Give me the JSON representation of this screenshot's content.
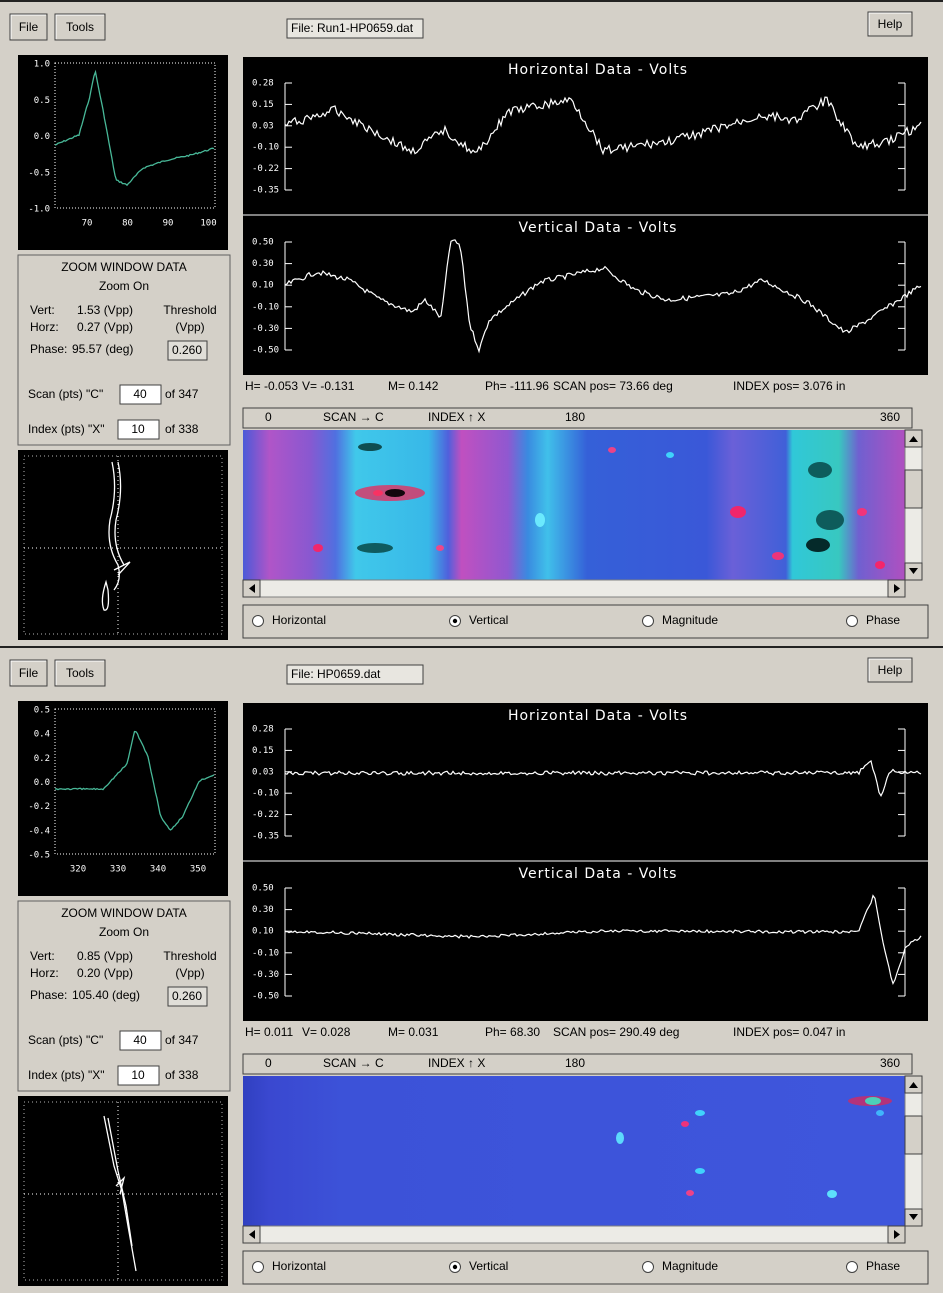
{
  "panels": [
    {
      "menu": {
        "file": "File",
        "tools": "Tools",
        "help": "Help"
      },
      "file_label": "File: Run1-HP0659.dat",
      "zoom_plot": {
        "yticks": [
          "1.0",
          "0.5",
          "0.0",
          "-0.5",
          "-1.0"
        ],
        "xticks": [
          "70",
          "80",
          "90",
          "100"
        ]
      },
      "horizontal_plot": {
        "title": "Horizontal Data  -  Volts",
        "yticks": [
          "0.28",
          "0.15",
          "0.03",
          "-0.10",
          "-0.22",
          "-0.35"
        ]
      },
      "vertical_plot": {
        "title": "Vertical Data  -  Volts",
        "yticks": [
          "0.50",
          "0.30",
          "0.10",
          "-0.10",
          "-0.30",
          "-0.50"
        ]
      },
      "zoom_data": {
        "title": "ZOOM WINDOW DATA",
        "status": "Zoom On",
        "vert_label": "Vert:",
        "vert": "1.53 (Vpp)",
        "horz_label": "Horz:",
        "horz": "0.27 (Vpp)",
        "phase_label": "Phase:",
        "phase": "95.57 (deg)",
        "threshold_label": "Threshold",
        "threshold_unit": "(Vpp)",
        "threshold": "0.260",
        "scan_label": "Scan (pts) \"C\"",
        "scan_value": "40",
        "scan_of": "of 347",
        "index_label": "Index (pts) \"X\"",
        "index_value": "10",
        "index_of": "of 338"
      },
      "readouts": [
        "H= -0.053",
        "V= -0.131",
        "M= 0.142",
        "Ph= -111.96",
        "SCAN pos= 73.66 deg",
        "INDEX pos= 3.076 in"
      ],
      "scan_header": [
        "0",
        "SCAN → C",
        "INDEX ↑ X",
        "180",
        "360"
      ],
      "radio_options": [
        {
          "label": "Horizontal",
          "checked": false
        },
        {
          "label": "Vertical",
          "checked": true
        },
        {
          "label": "Magnitude",
          "checked": false
        },
        {
          "label": "Phase",
          "checked": false
        }
      ]
    },
    {
      "menu": {
        "file": "File",
        "tools": "Tools",
        "help": "Help"
      },
      "file_label": "File: HP0659.dat",
      "zoom_plot": {
        "yticks": [
          "0.5",
          "0.4",
          "0.2",
          "0.0",
          "-0.2",
          "-0.4",
          "-0.5"
        ],
        "xticks": [
          "320",
          "330",
          "340",
          "350"
        ]
      },
      "horizontal_plot": {
        "title": "Horizontal Data  -  Volts",
        "yticks": [
          "0.28",
          "0.15",
          "0.03",
          "-0.10",
          "-0.22",
          "-0.35"
        ]
      },
      "vertical_plot": {
        "title": "Vertical Data  -  Volts",
        "yticks": [
          "0.50",
          "0.30",
          "0.10",
          "-0.10",
          "-0.30",
          "-0.50"
        ]
      },
      "zoom_data": {
        "title": "ZOOM WINDOW DATA",
        "status": "Zoom On",
        "vert_label": "Vert:",
        "vert": "0.85 (Vpp)",
        "horz_label": "Horz:",
        "horz": "0.20 (Vpp)",
        "phase_label": "Phase:",
        "phase": "105.40 (deg)",
        "threshold_label": "Threshold",
        "threshold_unit": "(Vpp)",
        "threshold": "0.260",
        "scan_label": "Scan (pts) \"C\"",
        "scan_value": "40",
        "scan_of": "of 347",
        "index_label": "Index (pts) \"X\"",
        "index_value": "10",
        "index_of": "of 338"
      },
      "readouts": [
        "H= 0.011",
        "V= 0.028",
        "M= 0.031",
        "Ph= 68.30",
        "SCAN pos= 290.49 deg",
        "INDEX pos= 0.047 in"
      ],
      "scan_header": [
        "0",
        "SCAN → C",
        "INDEX ↑ X",
        "180",
        "360"
      ],
      "radio_options": [
        {
          "label": "Horizontal",
          "checked": false
        },
        {
          "label": "Vertical",
          "checked": true
        },
        {
          "label": "Magnitude",
          "checked": false
        },
        {
          "label": "Phase",
          "checked": false
        }
      ]
    }
  ]
}
